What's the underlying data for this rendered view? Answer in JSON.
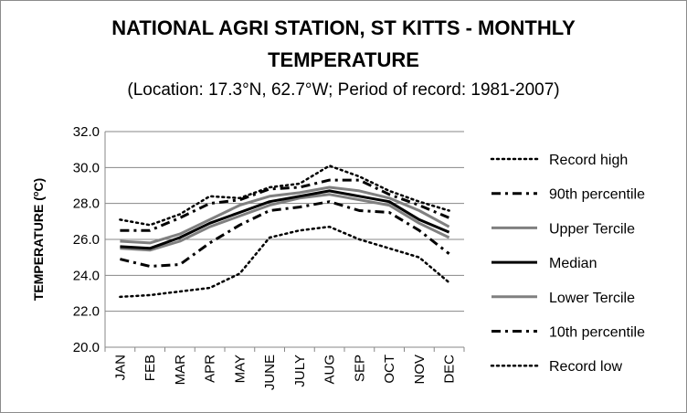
{
  "chart_data": {
    "type": "line",
    "title_line1": "NATIONAL AGRI STATION, ST KITTS - MONTHLY",
    "title_line2": "TEMPERATURE",
    "subtitle": "(Location: 17.3°N, 62.7°W; Period of record: 1981-2007)",
    "ylabel_main": "TEMPERATURE (",
    "ylabel_sup": "o",
    "ylabel_end": "C)",
    "xlabel": "",
    "ylim": [
      20.0,
      32.0
    ],
    "yticks": [
      "20.0",
      "22.0",
      "24.0",
      "26.0",
      "28.0",
      "30.0",
      "32.0"
    ],
    "categories": [
      "JAN",
      "FEB",
      "MAR",
      "APR",
      "MAY",
      "JUNE",
      "JULY",
      "AUG",
      "SEP",
      "OCT",
      "NOV",
      "DEC"
    ],
    "grid": true,
    "legend_position": "right",
    "series": [
      {
        "name": "Record high",
        "color": "#000000",
        "style": "dotted",
        "values": [
          27.1,
          26.8,
          27.4,
          28.4,
          28.3,
          28.9,
          29.1,
          30.1,
          29.5,
          28.7,
          28.1,
          27.6
        ]
      },
      {
        "name": "90th percentile",
        "color": "#000000",
        "style": "dashdot",
        "values": [
          26.5,
          26.5,
          27.2,
          28.0,
          28.2,
          28.8,
          28.9,
          29.3,
          29.3,
          28.5,
          27.9,
          27.2
        ]
      },
      {
        "name": "Upper Tercile",
        "color": "#808080",
        "style": "solid",
        "values": [
          25.9,
          25.8,
          26.3,
          27.1,
          27.9,
          28.4,
          28.6,
          28.9,
          28.7,
          28.3,
          27.6,
          26.7
        ]
      },
      {
        "name": "Median",
        "color": "#000000",
        "style": "solid",
        "values": [
          25.6,
          25.5,
          26.1,
          26.9,
          27.5,
          28.1,
          28.4,
          28.7,
          28.4,
          28.1,
          27.1,
          26.4
        ]
      },
      {
        "name": "Lower Tercile",
        "color": "#808080",
        "style": "solid",
        "values": [
          25.5,
          25.4,
          25.9,
          26.7,
          27.3,
          27.9,
          28.3,
          28.5,
          28.2,
          27.9,
          26.9,
          26.1
        ]
      },
      {
        "name": "10th percentile",
        "color": "#000000",
        "style": "dashdot",
        "values": [
          24.9,
          24.5,
          24.6,
          25.8,
          26.8,
          27.6,
          27.8,
          28.1,
          27.6,
          27.5,
          26.5,
          25.2
        ]
      },
      {
        "name": "Record low",
        "color": "#000000",
        "style": "dotted",
        "values": [
          22.8,
          22.9,
          23.1,
          23.3,
          24.1,
          26.1,
          26.5,
          26.7,
          26.0,
          25.5,
          25.0,
          23.6
        ]
      }
    ]
  }
}
